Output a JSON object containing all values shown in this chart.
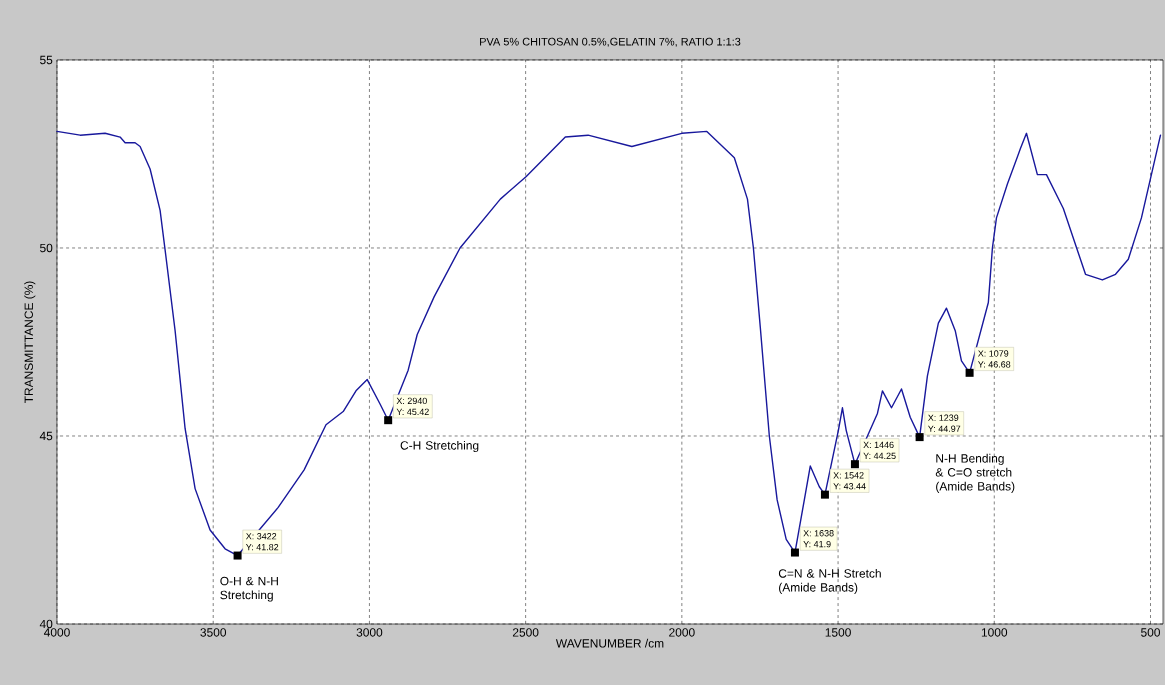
{
  "chart_data": {
    "type": "line",
    "title": "PVA 5% CHITOSAN 0.5%,GELATIN 7%, RATIO 1:1:3",
    "xlabel": "WAVENUMBER /cm",
    "ylabel": "TRANSMITTANCE (%)",
    "xlim": [
      4000,
      460
    ],
    "ylim": [
      40,
      55
    ],
    "xticks": [
      4000,
      3500,
      3000,
      2500,
      2000,
      1500,
      1000,
      500
    ],
    "yticks": [
      40,
      45,
      50,
      55
    ],
    "grid": true,
    "marker": "none",
    "line_style": "solid",
    "series": [
      {
        "color": "#18189c",
        "x": [
          4000,
          3926,
          3846,
          3798,
          3782,
          3750,
          3734,
          3702,
          3670,
          3654,
          3622,
          3590,
          3558,
          3510,
          3462,
          3422,
          3292,
          3209,
          3139,
          3084,
          3043,
          3007,
          2966,
          2940,
          2876,
          2847,
          2793,
          2710,
          2581,
          2498,
          2373,
          2300,
          2160,
          2000,
          1920,
          1832,
          1790,
          1771,
          1749,
          1720,
          1695,
          1666,
          1638,
          1608,
          1589,
          1560,
          1542,
          1499,
          1486,
          1474,
          1446,
          1374,
          1358,
          1329,
          1297,
          1269,
          1239,
          1214,
          1179,
          1153,
          1125,
          1105,
          1079,
          1019,
          1006,
          993,
          958,
          916,
          897,
          862,
          833,
          779,
          708,
          654,
          612,
          571,
          529,
          468
        ],
        "values": [
          53.1,
          53.0,
          53.05,
          52.95,
          52.8,
          52.8,
          52.7,
          52.1,
          51.0,
          49.95,
          47.8,
          45.2,
          43.6,
          42.5,
          42.0,
          41.82,
          43.1,
          44.1,
          45.3,
          45.65,
          46.2,
          46.5,
          45.85,
          45.42,
          46.75,
          47.7,
          48.7,
          50.0,
          51.3,
          51.9,
          52.95,
          53.0,
          52.7,
          53.05,
          53.1,
          52.4,
          51.3,
          50.0,
          47.9,
          45.0,
          43.3,
          42.25,
          41.9,
          43.3,
          44.2,
          43.65,
          43.44,
          45.15,
          45.75,
          45.15,
          44.25,
          45.6,
          46.2,
          45.75,
          46.25,
          45.5,
          44.97,
          46.6,
          48.0,
          48.4,
          47.8,
          47.0,
          46.68,
          48.55,
          50.0,
          50.8,
          51.7,
          52.65,
          53.05,
          51.95,
          51.95,
          51.05,
          49.3,
          49.15,
          49.3,
          49.7,
          50.8,
          53.0
        ]
      }
    ],
    "annotations": [
      {
        "text": "X: 3422",
        "x": 3422,
        "y": 41.82
      },
      {
        "text": "Y: 41.82",
        "x": 3422,
        "y": 41.82
      },
      {
        "text": "X: 2940",
        "x": 2940,
        "y": 45.42
      },
      {
        "text": "Y: 45.42",
        "x": 2940,
        "y": 45.42
      },
      {
        "text": "X: 1638",
        "x": 1638,
        "y": 41.9
      },
      {
        "text": "Y: 41.9",
        "x": 1638,
        "y": 41.9
      },
      {
        "text": "X: 1542",
        "x": 1542,
        "y": 43.44
      },
      {
        "text": "Y: 43.44",
        "x": 1542,
        "y": 43.44
      },
      {
        "text": "X: 1446",
        "x": 1446,
        "y": 44.25
      },
      {
        "text": "Y: 44.25",
        "x": 1446,
        "y": 44.25
      },
      {
        "text": "X: 1239",
        "x": 1239,
        "y": 44.97
      },
      {
        "text": "Y: 44.97",
        "x": 1239,
        "y": 44.97
      },
      {
        "text": "X: 1079",
        "x": 1079,
        "y": 46.68
      },
      {
        "text": "Y: 46.68",
        "x": 1079,
        "y": 46.68
      },
      "O-H & N-H Stretching",
      "C-H Stretching",
      "C=N & N-H Stretch (Amide Bands)",
      "N-H Bending & C=O stretch (Amide Bands)"
    ]
  }
}
